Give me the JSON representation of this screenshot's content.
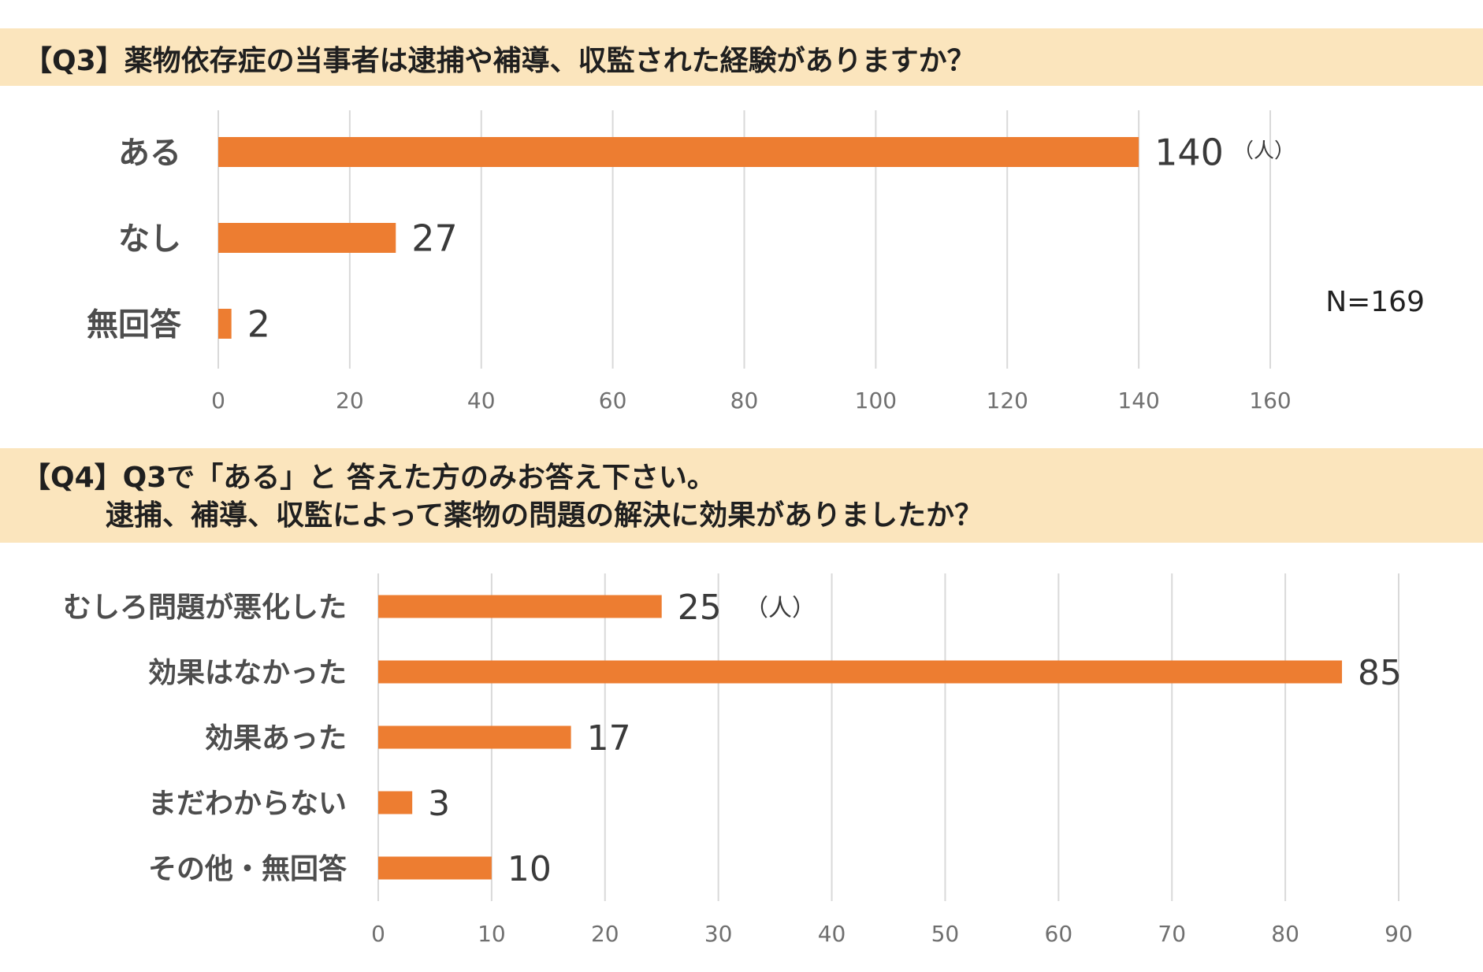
{
  "q3": {
    "title": "【Q3】薬物依存症の当事者は逮捕や補導、収監された経験がありますか？",
    "unit": "（人）",
    "n_label": "N=169"
  },
  "q4": {
    "title_line1": "【Q4】Q3で「ある」と 答えた方のみお答え下さい。",
    "title_line2": "逮捕、補導、収監によって薬物の問題の解決に効果がありましたか？",
    "unit": "（人）"
  },
  "colors": {
    "bar": "#ed7d31",
    "grid": "#d9d9d9",
    "banner": "#fbe5bd"
  },
  "chart_data": [
    {
      "type": "bar",
      "orientation": "horizontal",
      "title": "【Q3】薬物依存症の当事者は逮捕や補導、収監された経験がありますか？",
      "categories": [
        "ある",
        "なし",
        "無回答"
      ],
      "values": [
        140,
        27,
        2
      ],
      "xlim": [
        0,
        160
      ],
      "ticks": [
        0,
        20,
        40,
        60,
        80,
        100,
        120,
        140,
        160
      ],
      "grid": true,
      "data_labels": true
    },
    {
      "type": "bar",
      "orientation": "horizontal",
      "title": "逮捕、補導、収監によって薬物の問題の解決に効果がありましたか？",
      "categories": [
        "むしろ問題が悪化した",
        "効果はなかった",
        "効果あった",
        "まだわからない",
        "その他・無回答"
      ],
      "values": [
        25,
        85,
        17,
        3,
        10
      ],
      "xlim": [
        0,
        90
      ],
      "ticks": [
        0,
        10,
        20,
        30,
        40,
        50,
        60,
        70,
        80,
        90
      ],
      "grid": true,
      "data_labels": true
    }
  ]
}
